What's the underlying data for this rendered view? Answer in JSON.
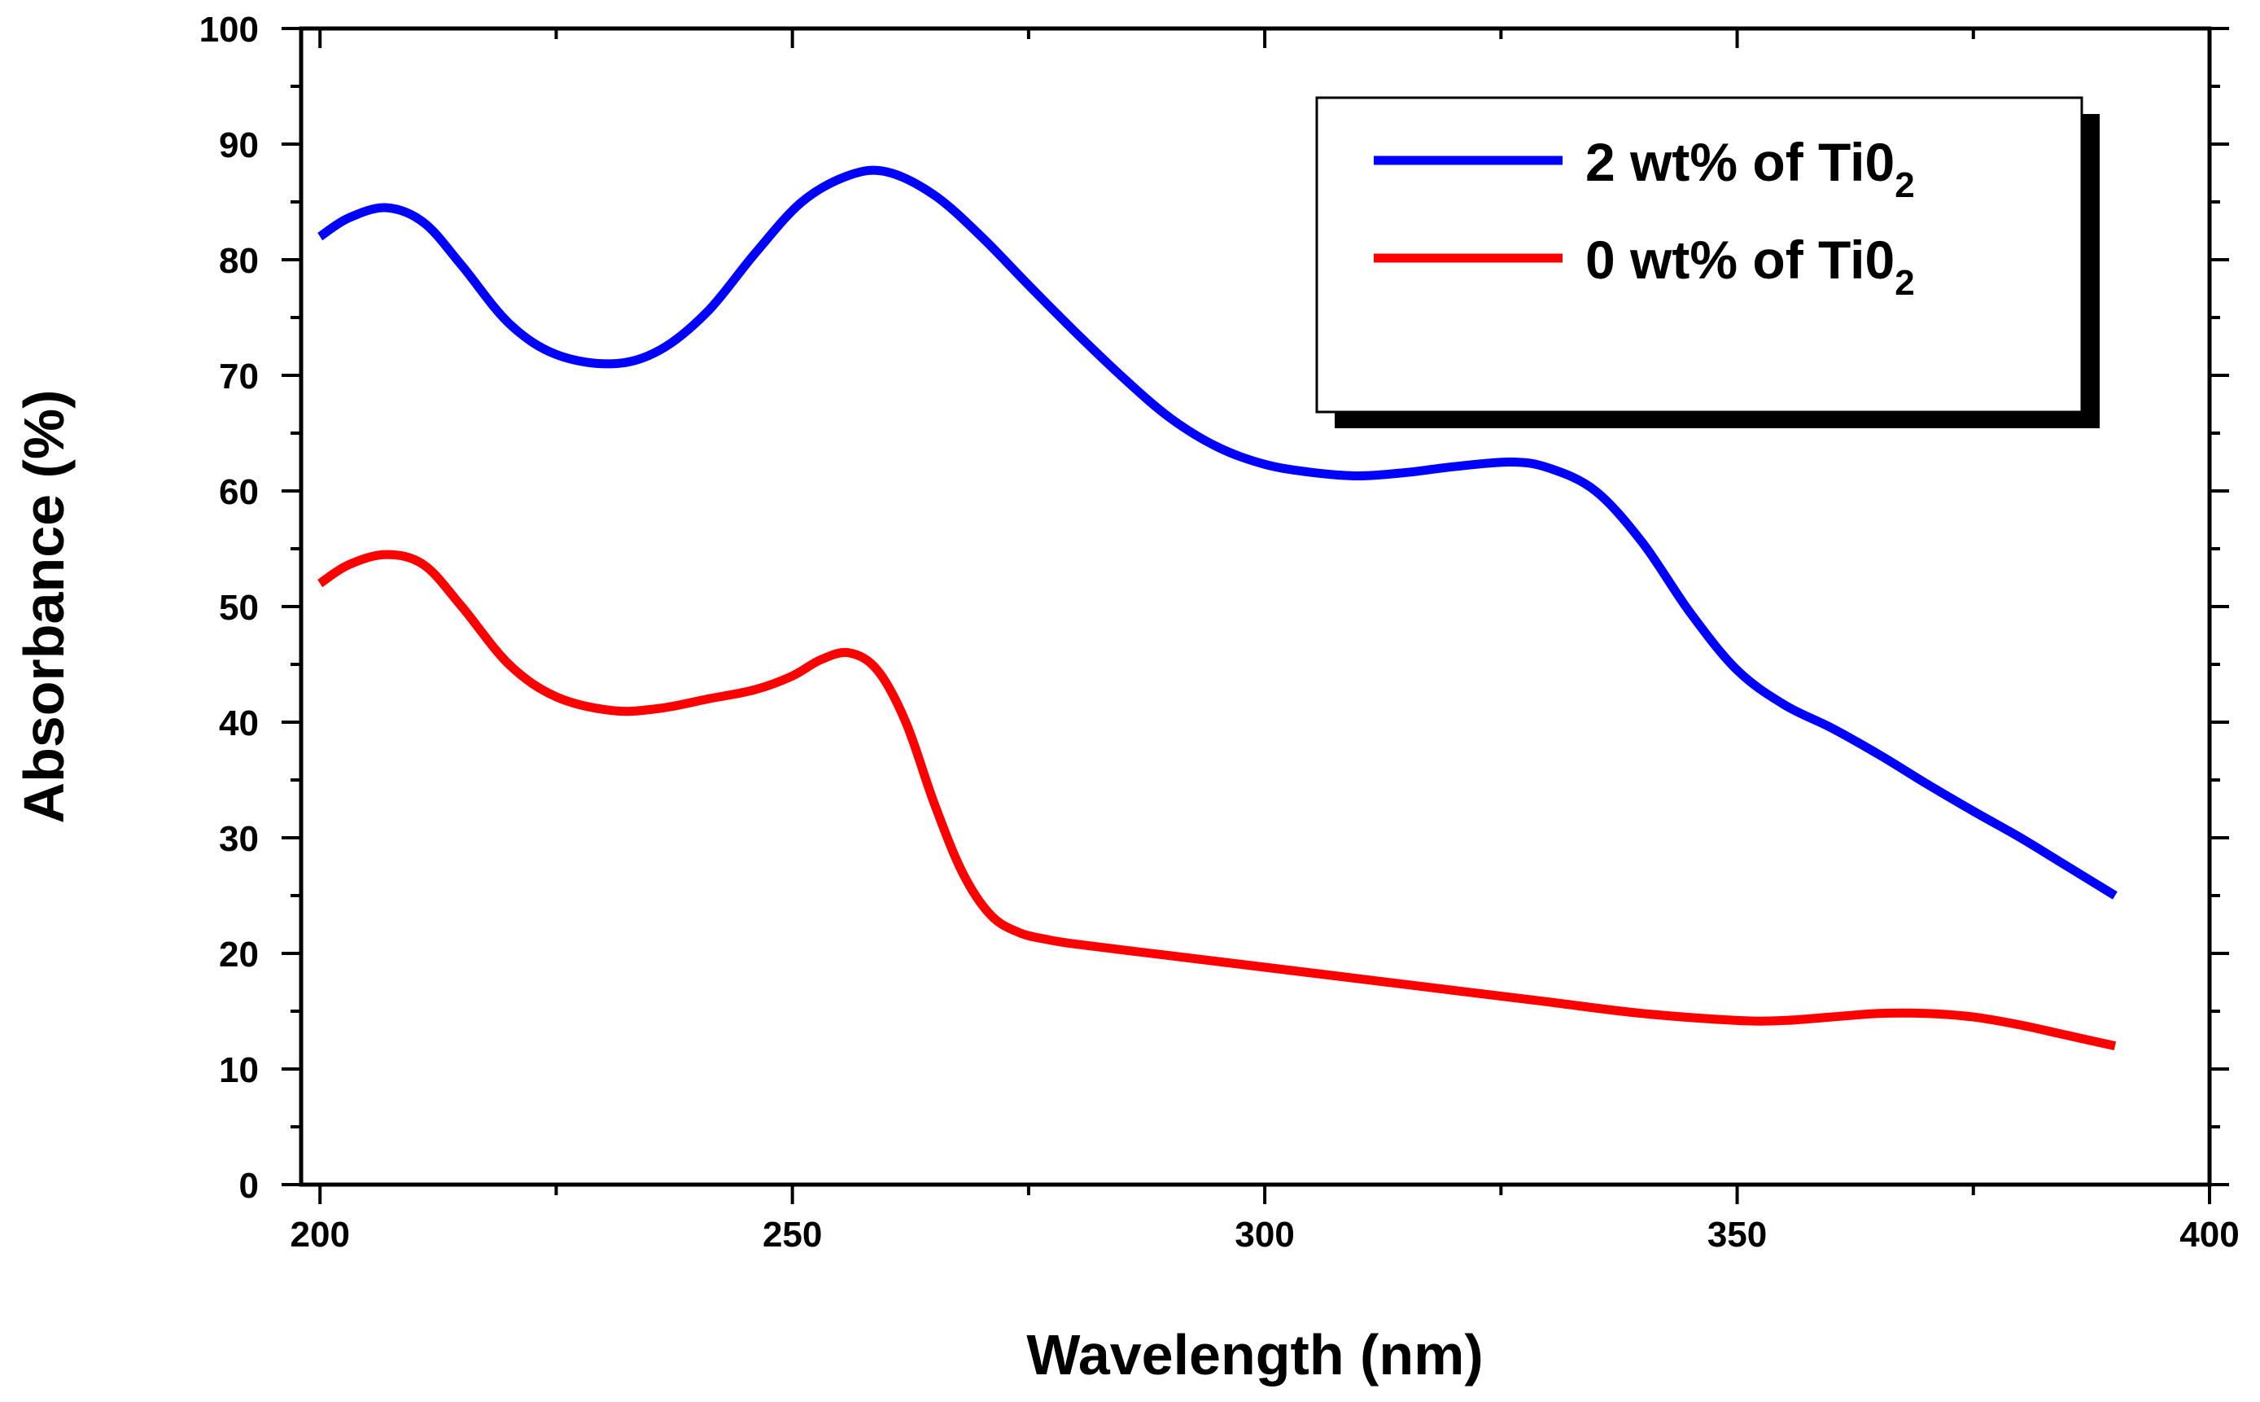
{
  "chart_data": {
    "type": "line",
    "title": "",
    "xlabel": "Wavelength (nm)",
    "ylabel": "Absorbance (%)",
    "xlim": [
      198,
      400
    ],
    "ylim": [
      0,
      100
    ],
    "x_ticks": [
      200,
      250,
      300,
      350,
      400
    ],
    "y_ticks": [
      0,
      10,
      20,
      30,
      40,
      50,
      60,
      70,
      80,
      90,
      100
    ],
    "grid": false,
    "legend_position": "top-right",
    "series": [
      {
        "name": "2 wt% of Ti0",
        "subscript": "2",
        "color": "#0000ff",
        "x": [
          200,
          203,
          207,
          211,
          215,
          220,
          225,
          231,
          236,
          241,
          246,
          251,
          256,
          260,
          265,
          270,
          275,
          280,
          285,
          290,
          295,
          300,
          305,
          310,
          315,
          320,
          326,
          330,
          335,
          340,
          345,
          350,
          355,
          360,
          365,
          370,
          375,
          380,
          385,
          390
        ],
        "y": [
          82,
          83.6,
          84.5,
          83.2,
          79.5,
          74.5,
          71.8,
          71,
          72.2,
          75.5,
          80.5,
          85,
          87.3,
          87.6,
          85.6,
          82,
          77.8,
          73.7,
          69.8,
          66.3,
          63.8,
          62.3,
          61.6,
          61.3,
          61.6,
          62.1,
          62.5,
          62,
          60,
          55.5,
          49.5,
          44.5,
          41.5,
          39.5,
          37.2,
          34.7,
          32.3,
          30,
          27.5,
          25
        ]
      },
      {
        "name": "0 wt% of Ti0",
        "subscript": "2",
        "color": "#ff0000",
        "x": [
          200,
          203,
          207,
          211,
          215,
          220,
          225,
          231,
          236,
          241,
          246,
          250,
          253,
          256,
          259,
          262,
          265,
          268,
          271,
          274,
          277,
          280,
          290,
          300,
          310,
          320,
          330,
          340,
          350,
          355,
          360,
          365,
          370,
          375,
          380,
          385,
          390
        ],
        "y": [
          52,
          53.6,
          54.5,
          53.6,
          50,
          45,
          42.2,
          41,
          41.2,
          42,
          42.8,
          44,
          45.4,
          46,
          44.5,
          40,
          33,
          27,
          23.3,
          21.8,
          21.2,
          20.8,
          19.8,
          18.8,
          17.8,
          16.8,
          15.8,
          14.8,
          14.2,
          14.2,
          14.5,
          14.8,
          14.8,
          14.5,
          13.8,
          12.9,
          12
        ]
      }
    ]
  }
}
